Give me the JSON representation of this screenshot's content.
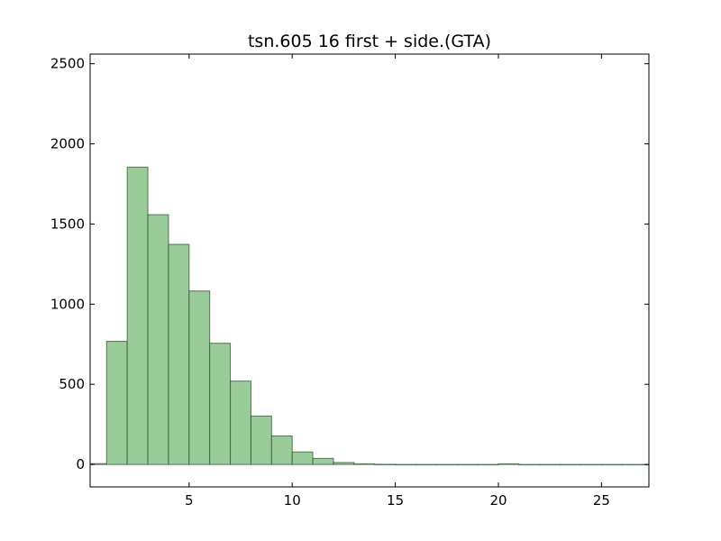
{
  "chart_data": {
    "type": "bar",
    "title": "tsn.605 16 first + side.(GTA)",
    "xlabel": "",
    "ylabel": "",
    "xlim": [
      0.2,
      27.3
    ],
    "ylim": [
      -140,
      2560
    ],
    "xticks": [
      5,
      10,
      15,
      20,
      25
    ],
    "yticks": [
      0,
      500,
      1000,
      1500,
      2000,
      2500
    ],
    "bar_color": "#99cc99",
    "bin_width": 1,
    "bins": [
      {
        "x0": 0,
        "value": 5
      },
      {
        "x0": 1,
        "value": 768
      },
      {
        "x0": 2,
        "value": 1855
      },
      {
        "x0": 3,
        "value": 1558
      },
      {
        "x0": 4,
        "value": 1373
      },
      {
        "x0": 5,
        "value": 1082
      },
      {
        "x0": 6,
        "value": 756
      },
      {
        "x0": 7,
        "value": 520
      },
      {
        "x0": 8,
        "value": 302
      },
      {
        "x0": 9,
        "value": 178
      },
      {
        "x0": 10,
        "value": 78
      },
      {
        "x0": 11,
        "value": 38
      },
      {
        "x0": 12,
        "value": 12
      },
      {
        "x0": 13,
        "value": 4
      },
      {
        "x0": 14,
        "value": 1
      },
      {
        "x0": 15,
        "value": 0
      },
      {
        "x0": 16,
        "value": 0
      },
      {
        "x0": 17,
        "value": 0
      },
      {
        "x0": 18,
        "value": 0
      },
      {
        "x0": 19,
        "value": 0
      },
      {
        "x0": 20,
        "value": 4
      },
      {
        "x0": 21,
        "value": 0
      },
      {
        "x0": 22,
        "value": 0
      },
      {
        "x0": 23,
        "value": 0
      },
      {
        "x0": 24,
        "value": 0
      },
      {
        "x0": 25,
        "value": 0
      },
      {
        "x0": 26,
        "value": 0
      },
      {
        "x0": 27,
        "value": 0
      }
    ]
  }
}
